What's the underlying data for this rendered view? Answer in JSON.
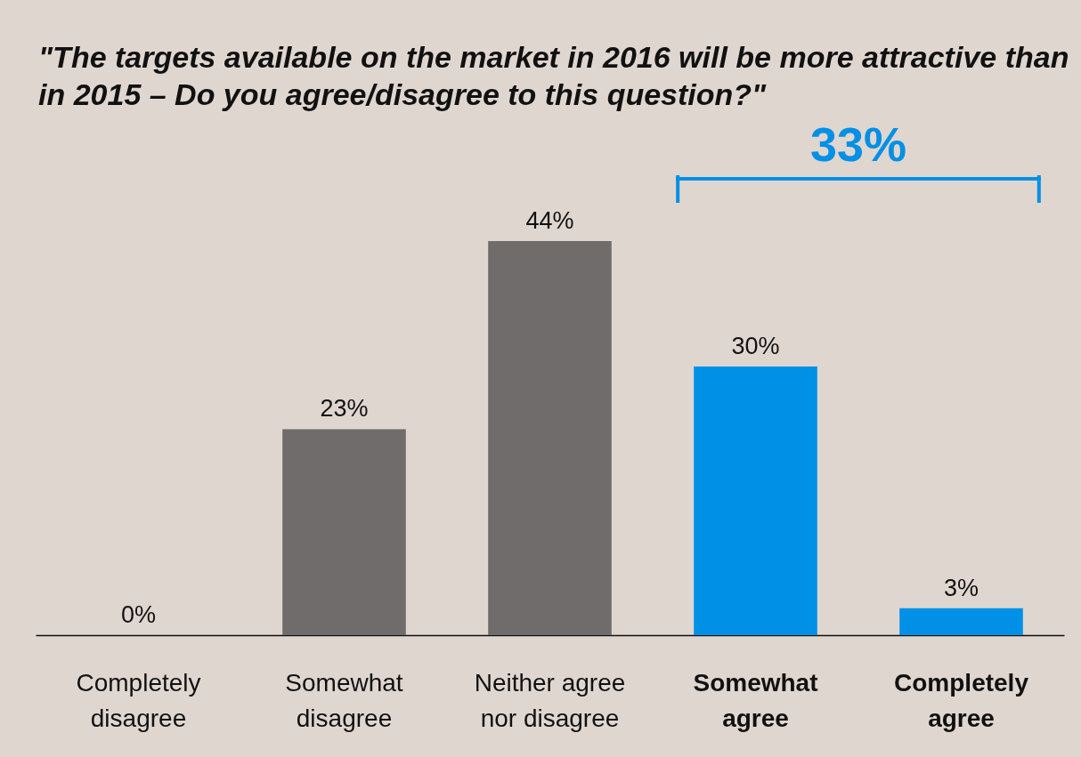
{
  "chart_data": {
    "type": "bar",
    "title": "\"The targets available on the market in 2016 will be more attractive than in 2015 – Do you agree/disagree to this question?\"",
    "categories": [
      "Completely disagree",
      "Somewhat disagree",
      "Neither agree nor disagree",
      "Somewhat agree",
      "Completely agree"
    ],
    "values": [
      0,
      23,
      44,
      30,
      3
    ],
    "value_labels": [
      "0%",
      "23%",
      "44%",
      "30%",
      "3%"
    ],
    "colors": [
      "#706c6b",
      "#706c6b",
      "#706c6b",
      "#0090e6",
      "#0090e6"
    ],
    "annotations": [
      "33%"
    ]
  }
}
